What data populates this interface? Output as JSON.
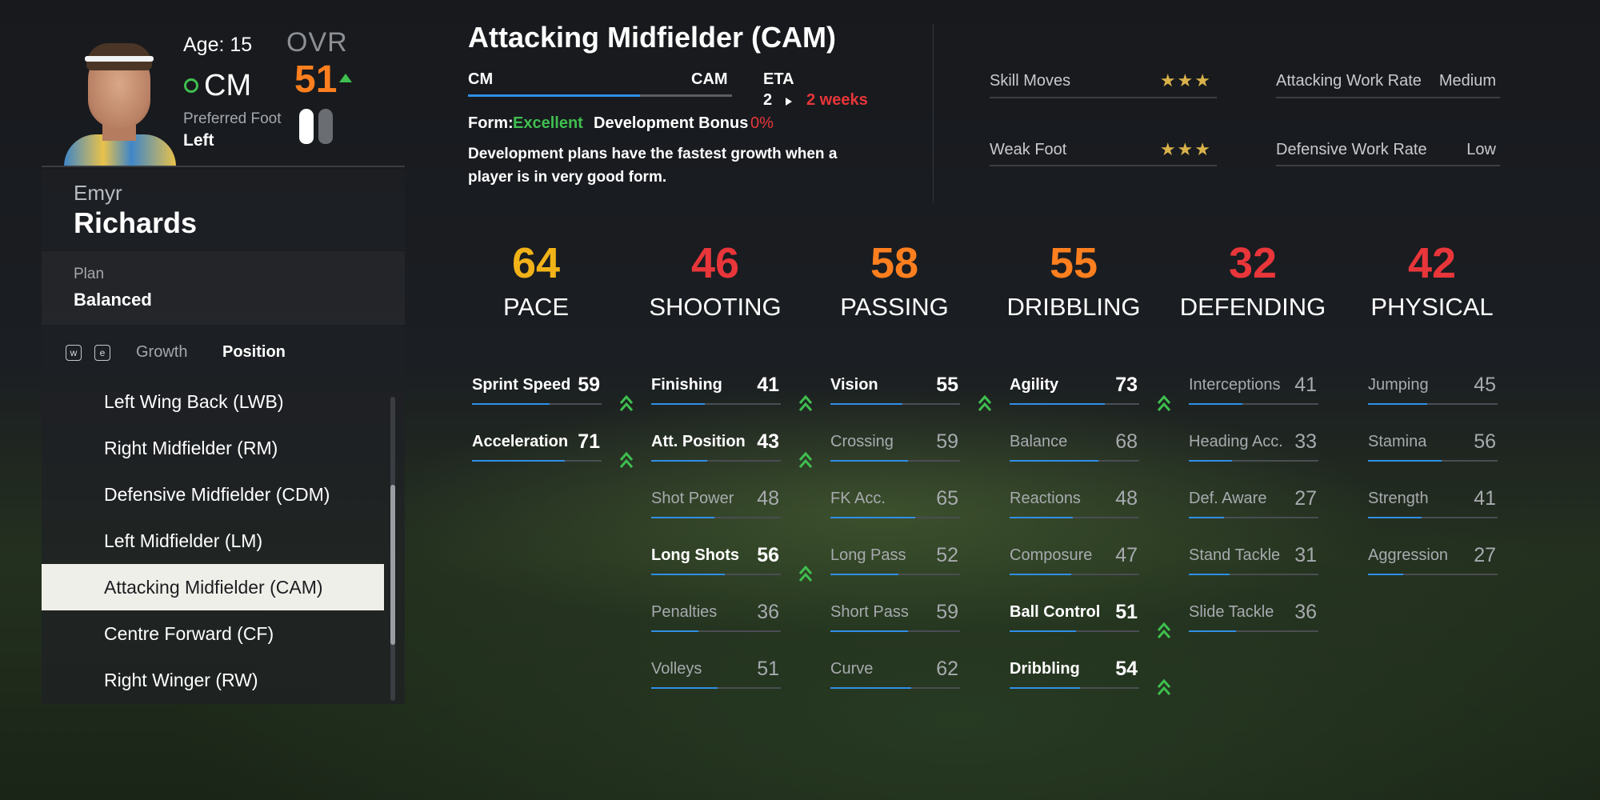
{
  "player": {
    "age_text": "Age: 15",
    "ovr_label": "OVR",
    "ovr_value": "51",
    "position": "CM",
    "preferred_foot_label": "Preferred Foot",
    "preferred_foot": "Left",
    "first_name": "Emyr",
    "last_name": "Richards"
  },
  "plan": {
    "label": "Plan",
    "value": "Balanced"
  },
  "tabs": {
    "key_left": "w",
    "key_right": "e",
    "growth": "Growth",
    "position": "Position"
  },
  "positions": [
    {
      "label": "Left Wing Back (LWB)",
      "selected": false
    },
    {
      "label": "Right Midfielder (RM)",
      "selected": false
    },
    {
      "label": "Defensive Midfielder (CDM)",
      "selected": false
    },
    {
      "label": "Left Midfielder (LM)",
      "selected": false
    },
    {
      "label": "Attacking Midfielder (CAM)",
      "selected": true
    },
    {
      "label": "Centre Forward (CF)",
      "selected": false
    },
    {
      "label": "Right Winger (RW)",
      "selected": false
    }
  ],
  "development": {
    "title": "Attacking Midfielder (CAM)",
    "from_position": "CM",
    "to_position": "CAM",
    "progress": 0.65,
    "eta_label": "ETA",
    "eta_from": "2",
    "eta_to": "2 weeks",
    "form_label": "Form:",
    "form_value": "Excellent",
    "bonus_label": "Development Bonus",
    "bonus_value": "0%",
    "description": "Development plans have the fastest growth when a player is in very good form."
  },
  "traits": {
    "skill_moves_label": "Skill Moves",
    "skill_moves_stars": 3,
    "weak_foot_label": "Weak Foot",
    "weak_foot_stars": 3,
    "attacking_wr_label": "Attacking Work Rate",
    "attacking_wr_value": "Medium",
    "defensive_wr_label": "Defensive Work Rate",
    "defensive_wr_value": "Low"
  },
  "colors": {
    "pace": "#f2b318",
    "shooting": "#e8363a",
    "passing": "#ff7f1f",
    "dribbling": "#ff7f1f",
    "defending": "#e8363a",
    "physical": "#e8363a",
    "bar": "#2f8fe6",
    "growth_arrow": "#3fbf4f"
  },
  "categories": [
    {
      "key": "pace",
      "value": "64",
      "name": "PACE",
      "stats": [
        {
          "name": "Sprint Speed",
          "value": 59,
          "highlight": true,
          "growing": true
        },
        {
          "name": "Acceleration",
          "value": 71,
          "highlight": true,
          "growing": true
        }
      ]
    },
    {
      "key": "shooting",
      "value": "46",
      "name": "SHOOTING",
      "stats": [
        {
          "name": "Finishing",
          "value": 41,
          "highlight": true,
          "growing": true
        },
        {
          "name": "Att. Position",
          "value": 43,
          "highlight": true,
          "growing": true
        },
        {
          "name": "Shot Power",
          "value": 48,
          "highlight": false,
          "growing": false
        },
        {
          "name": "Long Shots",
          "value": 56,
          "highlight": true,
          "growing": true
        },
        {
          "name": "Penalties",
          "value": 36,
          "highlight": false,
          "growing": false
        },
        {
          "name": "Volleys",
          "value": 51,
          "highlight": false,
          "growing": false
        }
      ]
    },
    {
      "key": "passing",
      "value": "58",
      "name": "PASSING",
      "stats": [
        {
          "name": "Vision",
          "value": 55,
          "highlight": true,
          "growing": true
        },
        {
          "name": "Crossing",
          "value": 59,
          "highlight": false,
          "growing": false
        },
        {
          "name": "FK Acc.",
          "value": 65,
          "highlight": false,
          "growing": false
        },
        {
          "name": "Long Pass",
          "value": 52,
          "highlight": false,
          "growing": false
        },
        {
          "name": "Short Pass",
          "value": 59,
          "highlight": false,
          "growing": false
        },
        {
          "name": "Curve",
          "value": 62,
          "highlight": false,
          "growing": false
        }
      ]
    },
    {
      "key": "dribbling",
      "value": "55",
      "name": "DRIBBLING",
      "stats": [
        {
          "name": "Agility",
          "value": 73,
          "highlight": true,
          "growing": true
        },
        {
          "name": "Balance",
          "value": 68,
          "highlight": false,
          "growing": false
        },
        {
          "name": "Reactions",
          "value": 48,
          "highlight": false,
          "growing": false
        },
        {
          "name": "Composure",
          "value": 47,
          "highlight": false,
          "growing": false
        },
        {
          "name": "Ball Control",
          "value": 51,
          "highlight": true,
          "growing": true
        },
        {
          "name": "Dribbling",
          "value": 54,
          "highlight": true,
          "growing": true
        }
      ]
    },
    {
      "key": "defending",
      "value": "32",
      "name": "DEFENDING",
      "stats": [
        {
          "name": "Interceptions",
          "value": 41,
          "highlight": false,
          "growing": false
        },
        {
          "name": "Heading Acc.",
          "value": 33,
          "highlight": false,
          "growing": false
        },
        {
          "name": "Def. Aware",
          "value": 27,
          "highlight": false,
          "growing": false
        },
        {
          "name": "Stand Tackle",
          "value": 31,
          "highlight": false,
          "growing": false
        },
        {
          "name": "Slide Tackle",
          "value": 36,
          "highlight": false,
          "growing": false
        }
      ]
    },
    {
      "key": "physical",
      "value": "42",
      "name": "PHYSICAL",
      "stats": [
        {
          "name": "Jumping",
          "value": 45,
          "highlight": false,
          "growing": false
        },
        {
          "name": "Stamina",
          "value": 56,
          "highlight": false,
          "growing": false
        },
        {
          "name": "Strength",
          "value": 41,
          "highlight": false,
          "growing": false
        },
        {
          "name": "Aggression",
          "value": 27,
          "highlight": false,
          "growing": false
        }
      ]
    }
  ]
}
